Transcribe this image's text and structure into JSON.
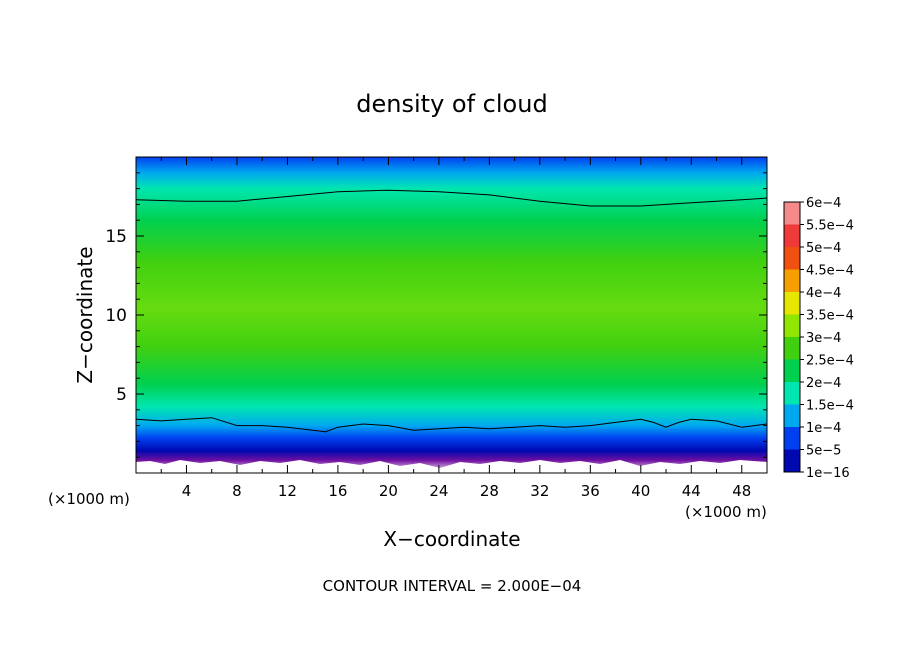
{
  "chart_data": {
    "type": "heatmap",
    "title": "density of cloud",
    "xlabel": "X−coordinate",
    "ylabel": "Z−coordinate",
    "x_unit_left": "(×1000 m)",
    "x_unit_right": "(×1000 m)",
    "xlim": [
      0,
      50
    ],
    "ylim": [
      0,
      20
    ],
    "x_ticks": [
      4,
      8,
      12,
      16,
      20,
      24,
      28,
      32,
      36,
      40,
      44,
      48
    ],
    "x_tick_labels": [
      "4",
      "8",
      "12",
      "16",
      "20",
      "24",
      "28",
      "32",
      "36",
      "40",
      "44",
      "48"
    ],
    "y_ticks": [
      5,
      10,
      15
    ],
    "y_tick_labels": [
      "5",
      "10",
      "15"
    ],
    "footer": "CONTOUR INTERVAL = 2.000E−04",
    "colorbar": {
      "labels": [
        "6e−4",
        "5.5e−4",
        "5e−4",
        "4.5e−4",
        "4e−4",
        "3.5e−4",
        "3e−4",
        "2.5e−4",
        "2e−4",
        "1.5e−4",
        "1e−4",
        "5e−5",
        "1e−16"
      ],
      "colors": [
        "#f58a8a",
        "#f03a3a",
        "#f05010",
        "#f5a000",
        "#e6e600",
        "#90e600",
        "#40d010",
        "#00d050",
        "#00e6b0",
        "#00a8f0",
        "#0040f0",
        "#0008b0",
        "#7010a0"
      ]
    },
    "contour_lines": [
      {
        "name": "",
        "x": [
          0,
          4,
          8,
          12,
          16,
          20,
          24,
          28,
          32,
          36,
          40,
          44,
          48,
          50
        ],
        "z": [
          17.3,
          17.2,
          17.2,
          17.5,
          17.8,
          17.9,
          17.8,
          17.6,
          17.2,
          16.9,
          16.9,
          17.1,
          17.3,
          17.4
        ]
      },
      {
        "name": "",
        "x": [
          0,
          2,
          4,
          6,
          8,
          10,
          12,
          14,
          15,
          16,
          18,
          20,
          22,
          24,
          26,
          28,
          30,
          32,
          34,
          36,
          38,
          40,
          41,
          42,
          43,
          44,
          46,
          48,
          50
        ],
        "z": [
          3.4,
          3.3,
          3.4,
          3.5,
          3.0,
          3.0,
          2.9,
          2.7,
          2.6,
          2.9,
          3.1,
          3.0,
          2.7,
          2.8,
          2.9,
          2.8,
          2.9,
          3.0,
          2.9,
          3.0,
          3.2,
          3.4,
          3.2,
          2.9,
          3.2,
          3.4,
          3.3,
          2.9,
          3.1
        ]
      }
    ]
  }
}
